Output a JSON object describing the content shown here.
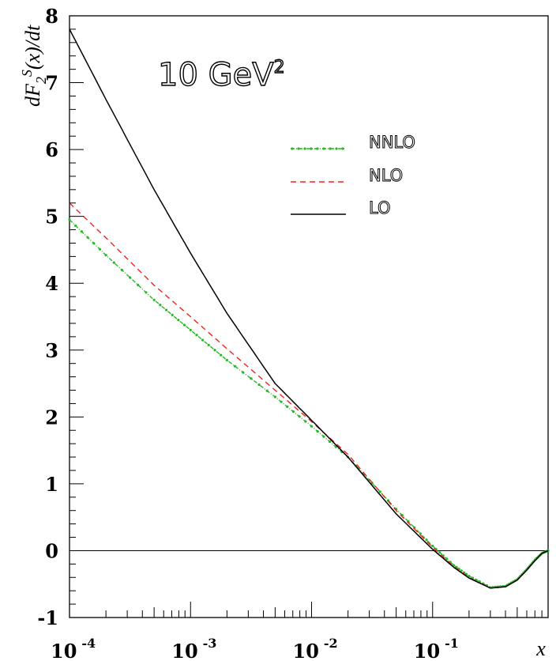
{
  "chart_data": {
    "type": "line",
    "title": "",
    "annotation": {
      "text": "10 GeV",
      "superscript": "2"
    },
    "xlabel": "x",
    "ylabel": {
      "main": "dF",
      "sub": "2",
      "sup": "S",
      "tail": "(x)/dt"
    },
    "xscale": "log",
    "xlim": [
      0.0001,
      0.9
    ],
    "ylim": [
      -1,
      8
    ],
    "x_ticks": [
      {
        "base": "10",
        "exp": "-4"
      },
      {
        "base": "10",
        "exp": "-3"
      },
      {
        "base": "10",
        "exp": "-2"
      },
      {
        "base": "10",
        "exp": "-1"
      }
    ],
    "y_ticks": [
      "-1",
      "0",
      "1",
      "2",
      "3",
      "4",
      "5",
      "6",
      "7",
      "8"
    ],
    "zero_line": true,
    "grid": false,
    "legend_position": "upper-right",
    "series": [
      {
        "name": "NNLO",
        "color": "#22bb22",
        "style": "dash-dot-markers",
        "x": [
          0.0001,
          0.0002,
          0.0005,
          0.001,
          0.002,
          0.005,
          0.01,
          0.02,
          0.05,
          0.1,
          0.15,
          0.2,
          0.3,
          0.4,
          0.5,
          0.6,
          0.7,
          0.8,
          0.9
        ],
        "y": [
          4.95,
          4.42,
          3.75,
          3.3,
          2.85,
          2.3,
          1.86,
          1.4,
          0.62,
          0.07,
          -0.22,
          -0.38,
          -0.55,
          -0.53,
          -0.43,
          -0.28,
          -0.14,
          -0.04,
          0.0
        ]
      },
      {
        "name": "NLO",
        "color": "#ee2222",
        "style": "dashed",
        "x": [
          0.0001,
          0.0002,
          0.0005,
          0.001,
          0.002,
          0.005,
          0.01,
          0.02,
          0.05,
          0.1,
          0.15,
          0.2,
          0.3,
          0.4,
          0.5,
          0.6,
          0.7,
          0.8,
          0.9
        ],
        "y": [
          5.2,
          4.68,
          3.97,
          3.5,
          3.02,
          2.4,
          1.93,
          1.44,
          0.6,
          0.05,
          -0.24,
          -0.4,
          -0.56,
          -0.54,
          -0.44,
          -0.29,
          -0.15,
          -0.04,
          0.0
        ]
      },
      {
        "name": "LO",
        "color": "#000000",
        "style": "solid",
        "x": [
          0.0001,
          0.0002,
          0.0005,
          0.001,
          0.002,
          0.005,
          0.01,
          0.02,
          0.05,
          0.1,
          0.15,
          0.2,
          0.3,
          0.4,
          0.5,
          0.6,
          0.7,
          0.8,
          0.9
        ],
        "y": [
          7.8,
          6.75,
          5.4,
          4.45,
          3.55,
          2.5,
          1.95,
          1.4,
          0.55,
          0.02,
          -0.25,
          -0.41,
          -0.56,
          -0.54,
          -0.44,
          -0.29,
          -0.15,
          -0.04,
          0.0
        ]
      }
    ]
  }
}
